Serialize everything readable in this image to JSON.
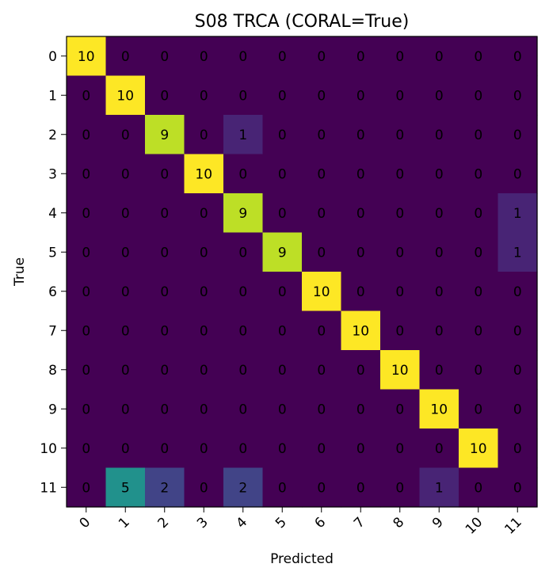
{
  "chart_data": {
    "type": "heatmap",
    "title": "S08 TRCA (CORAL=True)",
    "xlabel": "Predicted",
    "ylabel": "True",
    "x_tick_labels": [
      "0",
      "1",
      "2",
      "3",
      "4",
      "5",
      "6",
      "7",
      "8",
      "9",
      "10",
      "11"
    ],
    "y_tick_labels": [
      "0",
      "1",
      "2",
      "3",
      "4",
      "5",
      "6",
      "7",
      "8",
      "9",
      "10",
      "11"
    ],
    "colormap": "viridis",
    "value_range": [
      0,
      10
    ],
    "matrix": [
      [
        10,
        0,
        0,
        0,
        0,
        0,
        0,
        0,
        0,
        0,
        0,
        0
      ],
      [
        0,
        10,
        0,
        0,
        0,
        0,
        0,
        0,
        0,
        0,
        0,
        0
      ],
      [
        0,
        0,
        9,
        0,
        1,
        0,
        0,
        0,
        0,
        0,
        0,
        0
      ],
      [
        0,
        0,
        0,
        10,
        0,
        0,
        0,
        0,
        0,
        0,
        0,
        0
      ],
      [
        0,
        0,
        0,
        0,
        9,
        0,
        0,
        0,
        0,
        0,
        0,
        1
      ],
      [
        0,
        0,
        0,
        0,
        0,
        9,
        0,
        0,
        0,
        0,
        0,
        1
      ],
      [
        0,
        0,
        0,
        0,
        0,
        0,
        10,
        0,
        0,
        0,
        0,
        0
      ],
      [
        0,
        0,
        0,
        0,
        0,
        0,
        0,
        10,
        0,
        0,
        0,
        0
      ],
      [
        0,
        0,
        0,
        0,
        0,
        0,
        0,
        0,
        10,
        0,
        0,
        0
      ],
      [
        0,
        0,
        0,
        0,
        0,
        0,
        0,
        0,
        0,
        10,
        0,
        0
      ],
      [
        0,
        0,
        0,
        0,
        0,
        0,
        0,
        0,
        0,
        0,
        10,
        0
      ],
      [
        0,
        5,
        2,
        0,
        2,
        0,
        0,
        0,
        0,
        1,
        0,
        0
      ]
    ]
  }
}
